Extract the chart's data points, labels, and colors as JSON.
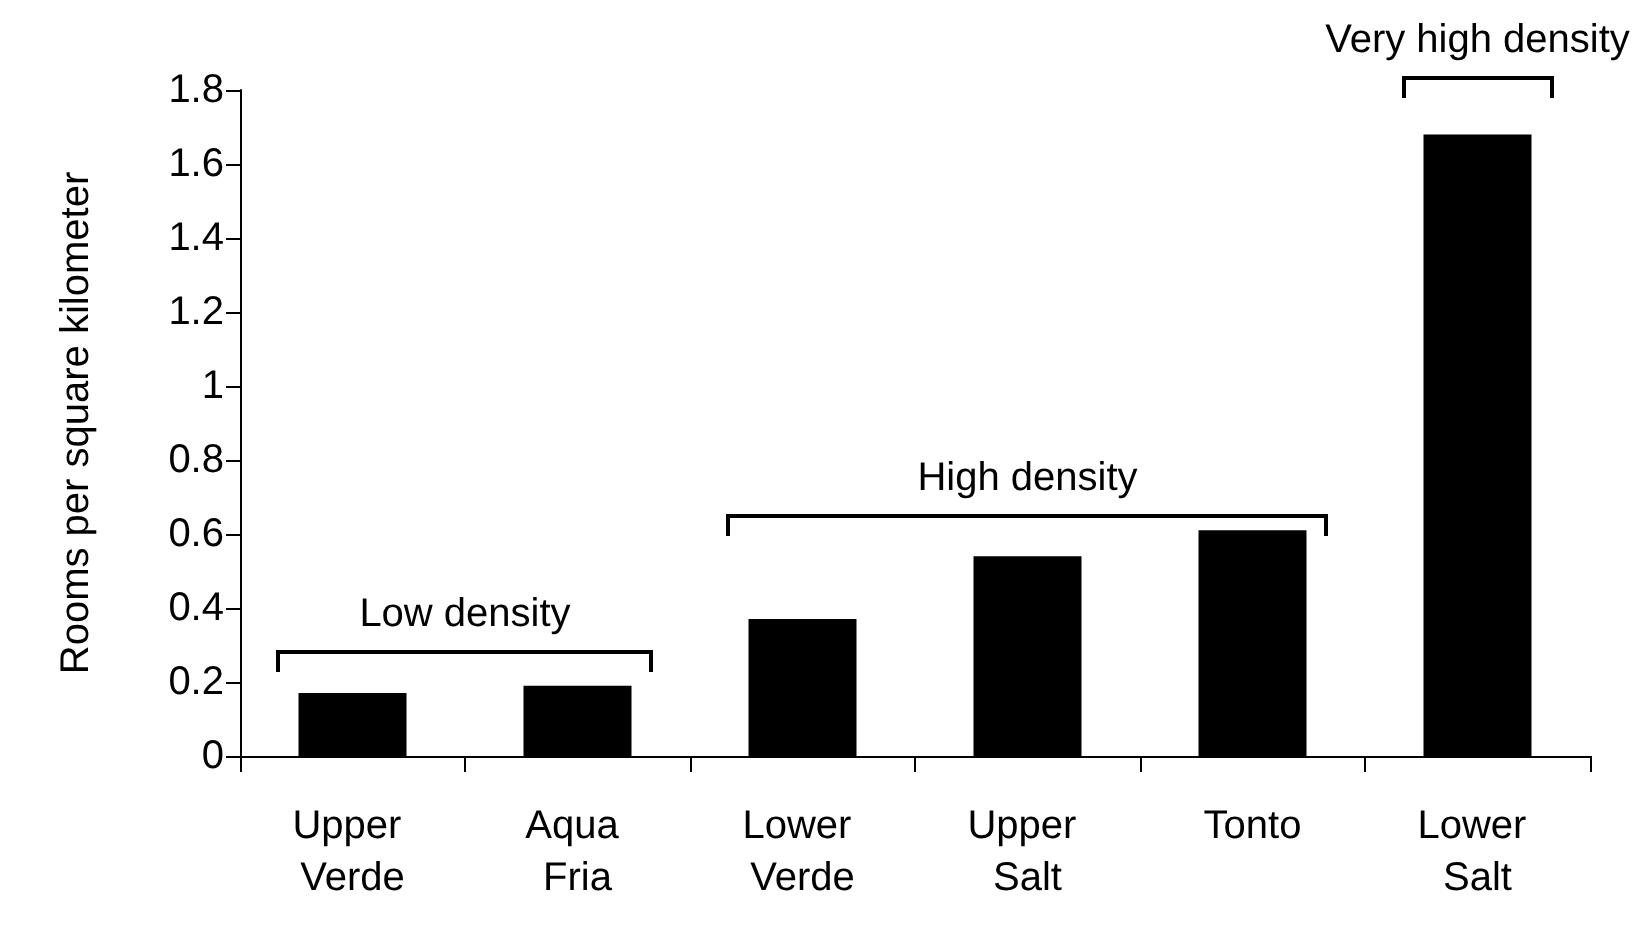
{
  "chart_data": {
    "type": "bar",
    "ylabel": "Rooms per square kilometer",
    "categories": [
      "Upper Verde",
      "Aqua Fria",
      "Lower Verde",
      "Upper Salt",
      "Tonto",
      "Lower Salt"
    ],
    "values": [
      0.17,
      0.19,
      0.37,
      0.54,
      0.61,
      1.68
    ],
    "color": "#000000",
    "ylim": [
      0,
      1.8
    ],
    "yticks": [
      0,
      0.2,
      0.4,
      0.6,
      0.8,
      1,
      1.2,
      1.4,
      1.6,
      1.8
    ],
    "grid": false,
    "annotations": [
      "Low density",
      "High density",
      "Very high density"
    ]
  }
}
